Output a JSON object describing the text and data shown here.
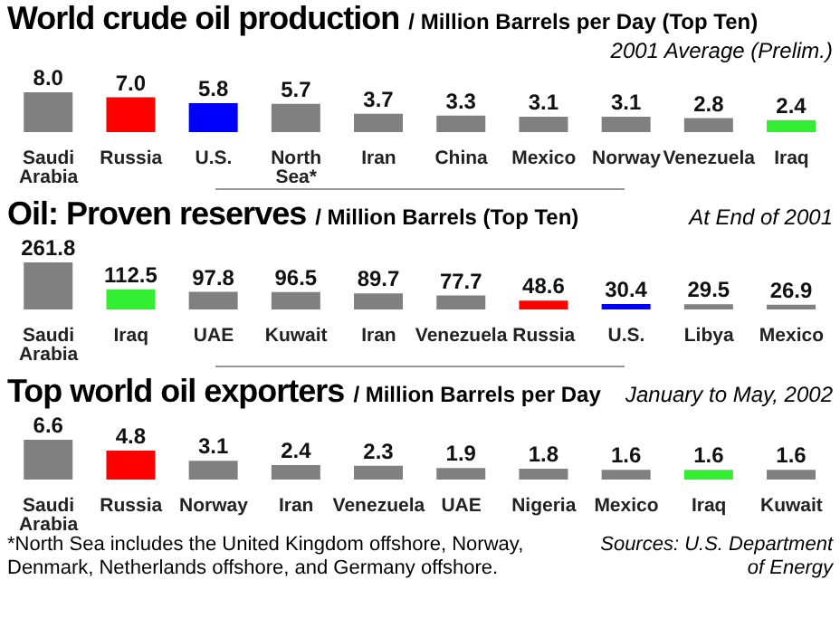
{
  "chart_data": [
    {
      "type": "bar",
      "title": "World crude oil production",
      "subtitle": "/ Million Barrels per Day (Top Ten)",
      "annotations": [
        "2001 Average (Prelim.)"
      ],
      "categories": [
        "Saudi Arabia",
        "Russia",
        "U.S.",
        "North Sea*",
        "Iran",
        "China",
        "Mexico",
        "Norway",
        "Venezuela",
        "Iraq"
      ],
      "values": [
        8.0,
        7.0,
        5.8,
        5.7,
        3.7,
        3.3,
        3.1,
        3.1,
        2.8,
        2.4
      ],
      "value_labels": [
        "8.0",
        "7.0",
        "5.8",
        "5.7",
        "3.7",
        "3.3",
        "3.1",
        "3.1",
        "2.8",
        "2.4"
      ],
      "colors": [
        "#808080",
        "#ff0000",
        "#0000ff",
        "#808080",
        "#808080",
        "#808080",
        "#808080",
        "#808080",
        "#808080",
        "#33ee33"
      ]
    },
    {
      "type": "bar",
      "title": "Oil: Proven reserves",
      "subtitle": "/ Million Barrels (Top Ten)",
      "annotations": [
        "At End of 2001"
      ],
      "categories": [
        "Saudi Arabia",
        "Iraq",
        "UAE",
        "Kuwait",
        "Iran",
        "Venezuela",
        "Russia",
        "U.S.",
        "Libya",
        "Mexico"
      ],
      "values": [
        261.8,
        112.5,
        97.8,
        96.5,
        89.7,
        77.7,
        48.6,
        30.4,
        29.5,
        26.9
      ],
      "colors": [
        "#808080",
        "#33ee33",
        "#808080",
        "#808080",
        "#808080",
        "#808080",
        "#ff0000",
        "#0000ff",
        "#808080",
        "#808080"
      ],
      "data_labels": true
    },
    {
      "type": "bar",
      "title": "Top world oil exporters",
      "subtitle": "/ Million Barrels per Day",
      "annotations": [
        "January to May, 2002",
        "*North Sea includes the United Kingdom offshore, Norway, Denmark, Netherlands offshore, and Germany offshore.",
        "Sources: U.S. Department of Energy"
      ],
      "categories": [
        "Saudi Arabia",
        "Russia",
        "Norway",
        "Iran",
        "Venezuela",
        "UAE",
        "Nigeria",
        "Mexico",
        "Iraq",
        "Kuwait"
      ],
      "values": [
        6.6,
        4.8,
        3.1,
        2.4,
        2.3,
        1.9,
        1.8,
        1.6,
        1.6,
        1.6
      ],
      "colors": [
        "#808080",
        "#ff0000",
        "#808080",
        "#808080",
        "#808080",
        "#808080",
        "#808080",
        "#808080",
        "#33ee33",
        "#808080"
      ],
      "data_labels": true
    }
  ]
}
